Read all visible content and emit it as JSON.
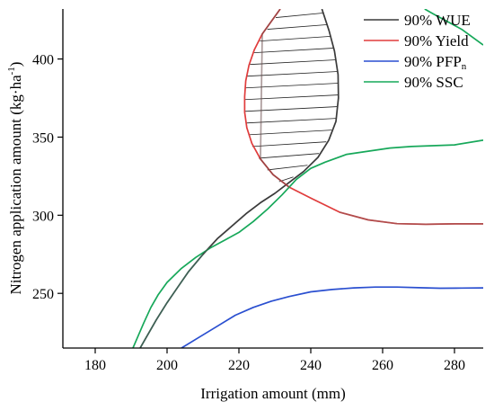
{
  "chart_data": {
    "type": "line",
    "xlabel": "Irrigation amount (mm)",
    "ylabel": "Nitrogen application amount (kg·ha",
    "ylabel_sup": "-1",
    "ylabel_tail": ")",
    "xlim": [
      171,
      288
    ],
    "ylim": [
      215,
      432
    ],
    "x_ticks": [
      180,
      200,
      220,
      240,
      260,
      280
    ],
    "y_ticks": [
      250,
      300,
      350,
      400
    ],
    "grid": false,
    "legend_position": "top-right",
    "series": [
      {
        "name": "90% WUE",
        "color": "#3a3a3a",
        "points": [
          [
            192.5,
            215
          ],
          [
            194,
            221
          ],
          [
            197,
            233
          ],
          [
            200,
            244
          ],
          [
            203,
            254
          ],
          [
            206,
            264
          ],
          [
            210,
            275
          ],
          [
            214,
            285
          ],
          [
            218,
            293
          ],
          [
            222,
            301
          ],
          [
            226,
            308
          ],
          [
            230,
            314
          ],
          [
            234,
            321
          ],
          [
            238,
            328
          ],
          [
            242,
            337
          ],
          [
            245,
            348
          ],
          [
            247,
            360
          ],
          [
            247.7,
            375
          ],
          [
            247.6,
            390
          ],
          [
            246.6,
            405
          ],
          [
            245.1,
            418
          ],
          [
            243.1,
            432
          ]
        ]
      },
      {
        "name": "90% Yield",
        "color": "#e03c3c",
        "points": [
          [
            231.5,
            432
          ],
          [
            229,
            424
          ],
          [
            226.5,
            416
          ],
          [
            224.3,
            406
          ],
          [
            222.8,
            396
          ],
          [
            221.9,
            386
          ],
          [
            221.6,
            376
          ],
          [
            221.6,
            366
          ],
          [
            222.2,
            356
          ],
          [
            223.6,
            346
          ],
          [
            226,
            336
          ],
          [
            229.5,
            326
          ],
          [
            234,
            318
          ],
          [
            240,
            311
          ],
          [
            248,
            302
          ],
          [
            256,
            297
          ],
          [
            264,
            294.6
          ],
          [
            272,
            294.2
          ],
          [
            280,
            294.5
          ],
          [
            288,
            294.5
          ]
        ]
      },
      {
        "name": "90% PFPₙ",
        "color": "#2a4fd0",
        "points": [
          [
            204,
            215
          ],
          [
            209,
            222
          ],
          [
            214,
            229
          ],
          [
            219,
            236
          ],
          [
            224,
            241
          ],
          [
            229,
            245
          ],
          [
            234,
            248
          ],
          [
            240,
            251
          ],
          [
            246,
            252.5
          ],
          [
            252,
            253.5
          ],
          [
            258,
            254
          ],
          [
            264,
            254
          ],
          [
            270,
            253.6
          ],
          [
            276,
            253.3
          ],
          [
            282,
            253.4
          ],
          [
            288,
            253.5
          ]
        ]
      },
      {
        "name": "90% SSC",
        "color": "#17a85a",
        "points": [
          [
            190.5,
            215
          ],
          [
            192,
            223
          ],
          [
            193.5,
            231
          ],
          [
            195.5,
            241
          ],
          [
            197.5,
            249
          ],
          [
            200,
            257
          ],
          [
            204,
            266
          ],
          [
            208,
            273
          ],
          [
            212,
            279
          ],
          [
            216,
            284
          ],
          [
            220,
            289
          ],
          [
            224,
            296
          ],
          [
            228,
            304
          ],
          [
            232,
            313
          ],
          [
            236,
            323
          ],
          [
            240,
            330
          ],
          [
            244,
            334
          ],
          [
            250,
            339
          ],
          [
            256,
            341
          ],
          [
            262,
            343
          ],
          [
            268,
            344
          ],
          [
            274,
            344.5
          ],
          [
            280,
            345
          ],
          [
            288,
            348
          ]
        ]
      },
      {
        "name": "",
        "color": "#17a85a",
        "points": [
          [
            271.7,
            432
          ],
          [
            274,
            429
          ],
          [
            278,
            424
          ],
          [
            282,
            419
          ],
          [
            285,
            414
          ],
          [
            288,
            409
          ]
        ]
      }
    ],
    "overlap_segments": [
      {
        "from_series": 0,
        "x_range": [
          192.5,
          210
        ],
        "color": "#3f7f6a"
      },
      {
        "from_series": 0,
        "x_range": [
          210,
          222
        ],
        "color": "#444444"
      },
      {
        "from_series": 1,
        "x_range": [
          226,
          236
        ],
        "color": "#6a4a4a"
      },
      {
        "from_series": 1,
        "x_range": [
          248,
          288
        ],
        "color": "#8a5a5a"
      }
    ],
    "hatched_region": {
      "between_series": [
        0,
        1
      ],
      "y_range": [
        323,
        432
      ],
      "hatch_spacing": 7.5
    }
  },
  "legend": {
    "items": [
      {
        "label": "90% WUE",
        "color": "#3a3a3a"
      },
      {
        "label": "90% Yield",
        "color": "#e03c3c"
      },
      {
        "label": "90% PFP",
        "sub": "n",
        "color": "#2a4fd0"
      },
      {
        "label": "90% SSC",
        "color": "#17a85a"
      }
    ]
  }
}
